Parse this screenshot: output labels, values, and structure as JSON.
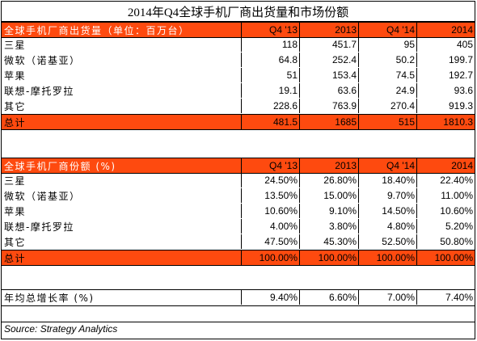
{
  "title": "2014年Q4全球手机厂商出货量和市场份额",
  "colors": {
    "header_bg": "#fe4a0f",
    "header_text": "#ffffff"
  },
  "shipments": {
    "header": [
      "全球手机厂商出货量（单位：百万台）",
      "Q4 '13",
      "2013",
      "Q4 '14",
      "2014"
    ],
    "rows": [
      [
        "三星",
        "118",
        "451.7",
        "95",
        "405"
      ],
      [
        "微软（诺基亚）",
        "64.8",
        "252.4",
        "50.2",
        "199.7"
      ],
      [
        "苹果",
        "51",
        "153.4",
        "74.5",
        "192.7"
      ],
      [
        "联想-摩托罗拉",
        "19.1",
        "63.6",
        "24.9",
        "93.6"
      ],
      [
        "其它",
        "228.6",
        "763.9",
        "270.4",
        "919.3"
      ]
    ],
    "total": [
      "总计",
      "481.5",
      "1685",
      "515",
      "1810.3"
    ]
  },
  "share": {
    "header": [
      "全球手机厂商份额 (%)",
      "Q4 '13",
      "2013",
      "Q4 '14",
      "2014"
    ],
    "rows": [
      [
        "三星",
        "24.50%",
        "26.80%",
        "18.40%",
        "22.40%"
      ],
      [
        "微软（诺基亚）",
        "13.50%",
        "15.00%",
        "9.70%",
        "11.00%"
      ],
      [
        "苹果",
        "10.60%",
        "9.10%",
        "14.50%",
        "10.60%"
      ],
      [
        "联想-摩托罗拉",
        "4.00%",
        "3.80%",
        "4.80%",
        "5.20%"
      ],
      [
        "其它",
        "47.50%",
        "45.30%",
        "52.50%",
        "50.80%"
      ]
    ],
    "total": [
      "总计",
      "100.00%",
      "100.00%",
      "100.00%",
      "100.00%"
    ]
  },
  "growth": [
    "年均总增长率 (%)",
    "9.40%",
    "6.60%",
    "7.00%",
    "7.40%"
  ],
  "source": "Source: Strategy Analytics"
}
